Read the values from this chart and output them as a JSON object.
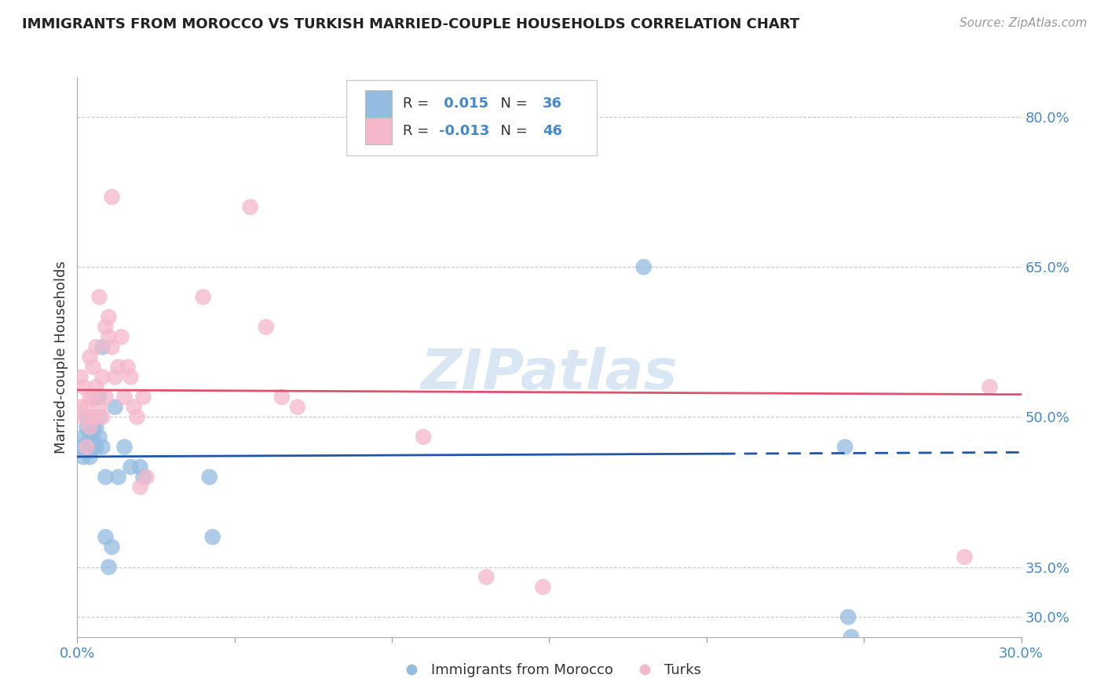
{
  "title": "IMMIGRANTS FROM MOROCCO VS TURKISH MARRIED-COUPLE HOUSEHOLDS CORRELATION CHART",
  "source": "Source: ZipAtlas.com",
  "ylabel": "Married-couple Households",
  "xlim": [
    0.0,
    0.3
  ],
  "ylim": [
    0.28,
    0.84
  ],
  "x_ticks": [
    0.0,
    0.05,
    0.1,
    0.15,
    0.2,
    0.25,
    0.3
  ],
  "x_tick_labels": [
    "0.0%",
    "",
    "",
    "",
    "",
    "",
    "30.0%"
  ],
  "y_ticks_right": [
    0.8,
    0.65,
    0.5,
    0.35,
    0.3
  ],
  "y_tick_labels_right": [
    "80.0%",
    "65.0%",
    "50.0%",
    "35.0%",
    "30.0%"
  ],
  "blue_R": 0.015,
  "blue_N": 36,
  "pink_R": -0.013,
  "pink_N": 46,
  "blue_color": "#93bce0",
  "pink_color": "#f5b8cb",
  "blue_line_color": "#2255aa",
  "pink_line_color": "#e05070",
  "legend_label_blue": "Immigrants from Morocco",
  "legend_label_pink": "Turks",
  "blue_x": [
    0.001,
    0.002,
    0.002,
    0.003,
    0.003,
    0.003,
    0.004,
    0.004,
    0.005,
    0.005,
    0.005,
    0.005,
    0.006,
    0.006,
    0.006,
    0.007,
    0.007,
    0.007,
    0.008,
    0.008,
    0.009,
    0.009,
    0.01,
    0.011,
    0.012,
    0.013,
    0.015,
    0.017,
    0.02,
    0.021,
    0.042,
    0.043,
    0.18,
    0.244,
    0.245,
    0.246
  ],
  "blue_y": [
    0.47,
    0.48,
    0.46,
    0.5,
    0.49,
    0.47,
    0.48,
    0.46,
    0.49,
    0.47,
    0.48,
    0.5,
    0.47,
    0.49,
    0.52,
    0.48,
    0.5,
    0.52,
    0.47,
    0.57,
    0.44,
    0.38,
    0.35,
    0.37,
    0.51,
    0.44,
    0.47,
    0.45,
    0.45,
    0.44,
    0.44,
    0.38,
    0.65,
    0.47,
    0.3,
    0.28
  ],
  "pink_x": [
    0.001,
    0.001,
    0.002,
    0.002,
    0.003,
    0.003,
    0.004,
    0.004,
    0.004,
    0.005,
    0.005,
    0.005,
    0.006,
    0.006,
    0.006,
    0.007,
    0.007,
    0.008,
    0.008,
    0.009,
    0.009,
    0.01,
    0.01,
    0.011,
    0.011,
    0.012,
    0.013,
    0.014,
    0.015,
    0.016,
    0.017,
    0.018,
    0.019,
    0.02,
    0.021,
    0.022,
    0.04,
    0.055,
    0.06,
    0.065,
    0.07,
    0.11,
    0.13,
    0.148,
    0.282,
    0.29
  ],
  "pink_y": [
    0.51,
    0.54,
    0.5,
    0.53,
    0.47,
    0.51,
    0.49,
    0.52,
    0.56,
    0.5,
    0.52,
    0.55,
    0.5,
    0.53,
    0.57,
    0.51,
    0.62,
    0.54,
    0.5,
    0.52,
    0.59,
    0.6,
    0.58,
    0.72,
    0.57,
    0.54,
    0.55,
    0.58,
    0.52,
    0.55,
    0.54,
    0.51,
    0.5,
    0.43,
    0.52,
    0.44,
    0.62,
    0.71,
    0.59,
    0.52,
    0.51,
    0.48,
    0.34,
    0.33,
    0.36,
    0.53
  ],
  "watermark": "ZIPatlas",
  "background_color": "#ffffff",
  "grid_color": "#c8c8c8"
}
